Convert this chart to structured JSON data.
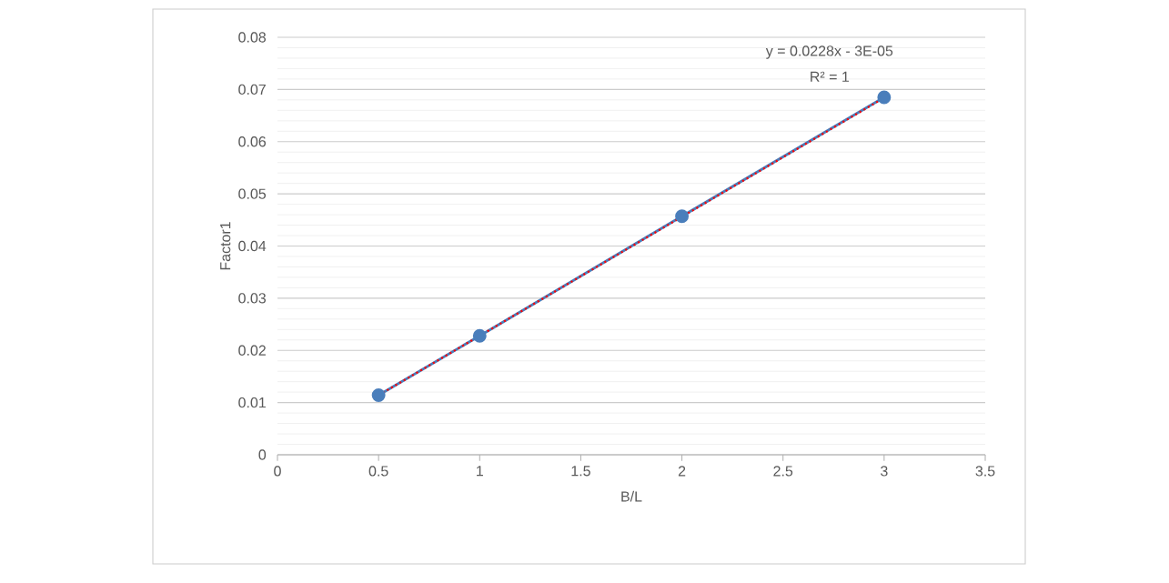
{
  "chart_data": {
    "type": "line",
    "xlabel": "B/L",
    "ylabel": "Factor1",
    "xlim": [
      0,
      3.5
    ],
    "xticks": [
      0,
      0.5,
      1,
      1.5,
      2,
      2.5,
      3,
      3.5
    ],
    "ylim": [
      0,
      0.08
    ],
    "yticks": [
      0,
      0.01,
      0.02,
      0.03,
      0.04,
      0.05,
      0.06,
      0.07,
      0.08
    ],
    "grid": "y",
    "legend": false,
    "series": [
      {
        "color": "#4a7ebb",
        "marker": "circle",
        "line_style": "solid",
        "x": [
          0.5,
          1,
          2,
          3
        ],
        "values": [
          0.0114,
          0.0228,
          0.0457,
          0.0685
        ]
      },
      {
        "color": "#ff0000",
        "marker": "none",
        "line_style": "dotted",
        "x": [
          0.5,
          3
        ],
        "values": [
          0.0114,
          0.0684
        ]
      }
    ],
    "annotations": [
      "y = 0.0228x - 3E-05",
      "R² = 1"
    ]
  }
}
